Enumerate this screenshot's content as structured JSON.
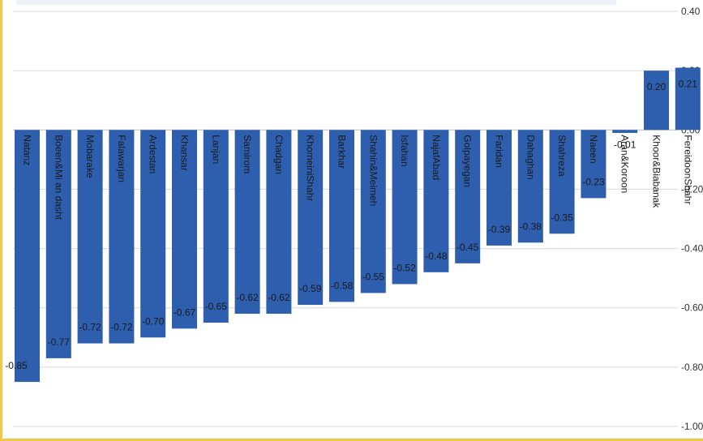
{
  "chart_data": {
    "type": "bar",
    "orientation": "vertical",
    "categories": [
      "Natanz",
      "Boeen&Mi an dasht",
      "Mobarake",
      "Falawarjan",
      "Ardestan",
      "Khansar",
      "Lanjan",
      "Samirom",
      "Chadgan",
      "KhomeiniShahr",
      "Barkhar",
      "Shahin&Meimeh",
      "Isfahan",
      "NajafAbad",
      "Golpayegan",
      "Faridan",
      "Dahaghan",
      "Shahreza",
      "Naeen",
      "Aran&Koroon",
      "Khoor&Biabanak",
      "FereidoonShahr"
    ],
    "values": [
      -0.85,
      -0.77,
      -0.72,
      -0.72,
      -0.7,
      -0.67,
      -0.65,
      -0.62,
      -0.62,
      -0.59,
      -0.58,
      -0.55,
      -0.52,
      -0.48,
      -0.45,
      -0.39,
      -0.38,
      -0.35,
      -0.23,
      -0.01,
      0.2,
      0.21
    ],
    "data_labels": [
      "-0.85",
      "-0.77",
      "-0.72",
      "-0.72",
      "-0.70",
      "-0.67",
      "-0.65",
      "-0.62",
      "-0.62",
      "-0.59",
      "-0.58",
      "-0.55",
      "-0.52",
      "-0.48",
      "-0.45",
      "-0.39",
      "-0.38",
      "-0.35",
      "-0.23",
      "-0.01",
      "0.20",
      "0.21"
    ],
    "y_ticks": [
      "0.40",
      "0.20",
      "0.00",
      "-0.20",
      "-0.40",
      "-0.60",
      "-0.80",
      "-1.00"
    ],
    "ylim": [
      -1.0,
      0.4
    ],
    "grid": true,
    "bar_color": "#2e5fae",
    "title": "",
    "xlabel": "",
    "ylabel": ""
  }
}
